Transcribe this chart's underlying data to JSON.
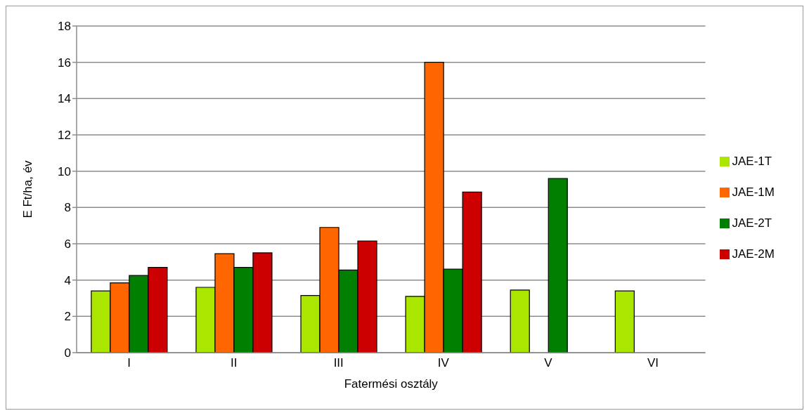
{
  "chart_data": {
    "type": "bar",
    "xlabel": "Fatermési osztály",
    "ylabel": "E Ft/ha, év",
    "categories": [
      "I",
      "II",
      "III",
      "IV",
      "V",
      "VI"
    ],
    "series": [
      {
        "name": "JAE-1T",
        "color": "#aae600",
        "values": [
          3.4,
          3.6,
          3.15,
          3.1,
          3.45,
          3.4
        ]
      },
      {
        "name": "JAE-1M",
        "color": "#ff6600",
        "values": [
          3.85,
          5.45,
          6.9,
          16,
          null,
          null
        ]
      },
      {
        "name": "JAE-2T",
        "color": "#007f00",
        "values": [
          4.25,
          4.7,
          4.55,
          4.6,
          9.6,
          null
        ]
      },
      {
        "name": "JAE-2M",
        "color": "#cc0000",
        "values": [
          4.7,
          5.5,
          6.15,
          8.85,
          null,
          null
        ]
      }
    ],
    "ylim": [
      0,
      18
    ],
    "yticks": [
      0,
      2,
      4,
      6,
      8,
      10,
      12,
      14,
      16,
      18
    ],
    "grid": "y",
    "legend": "right"
  }
}
